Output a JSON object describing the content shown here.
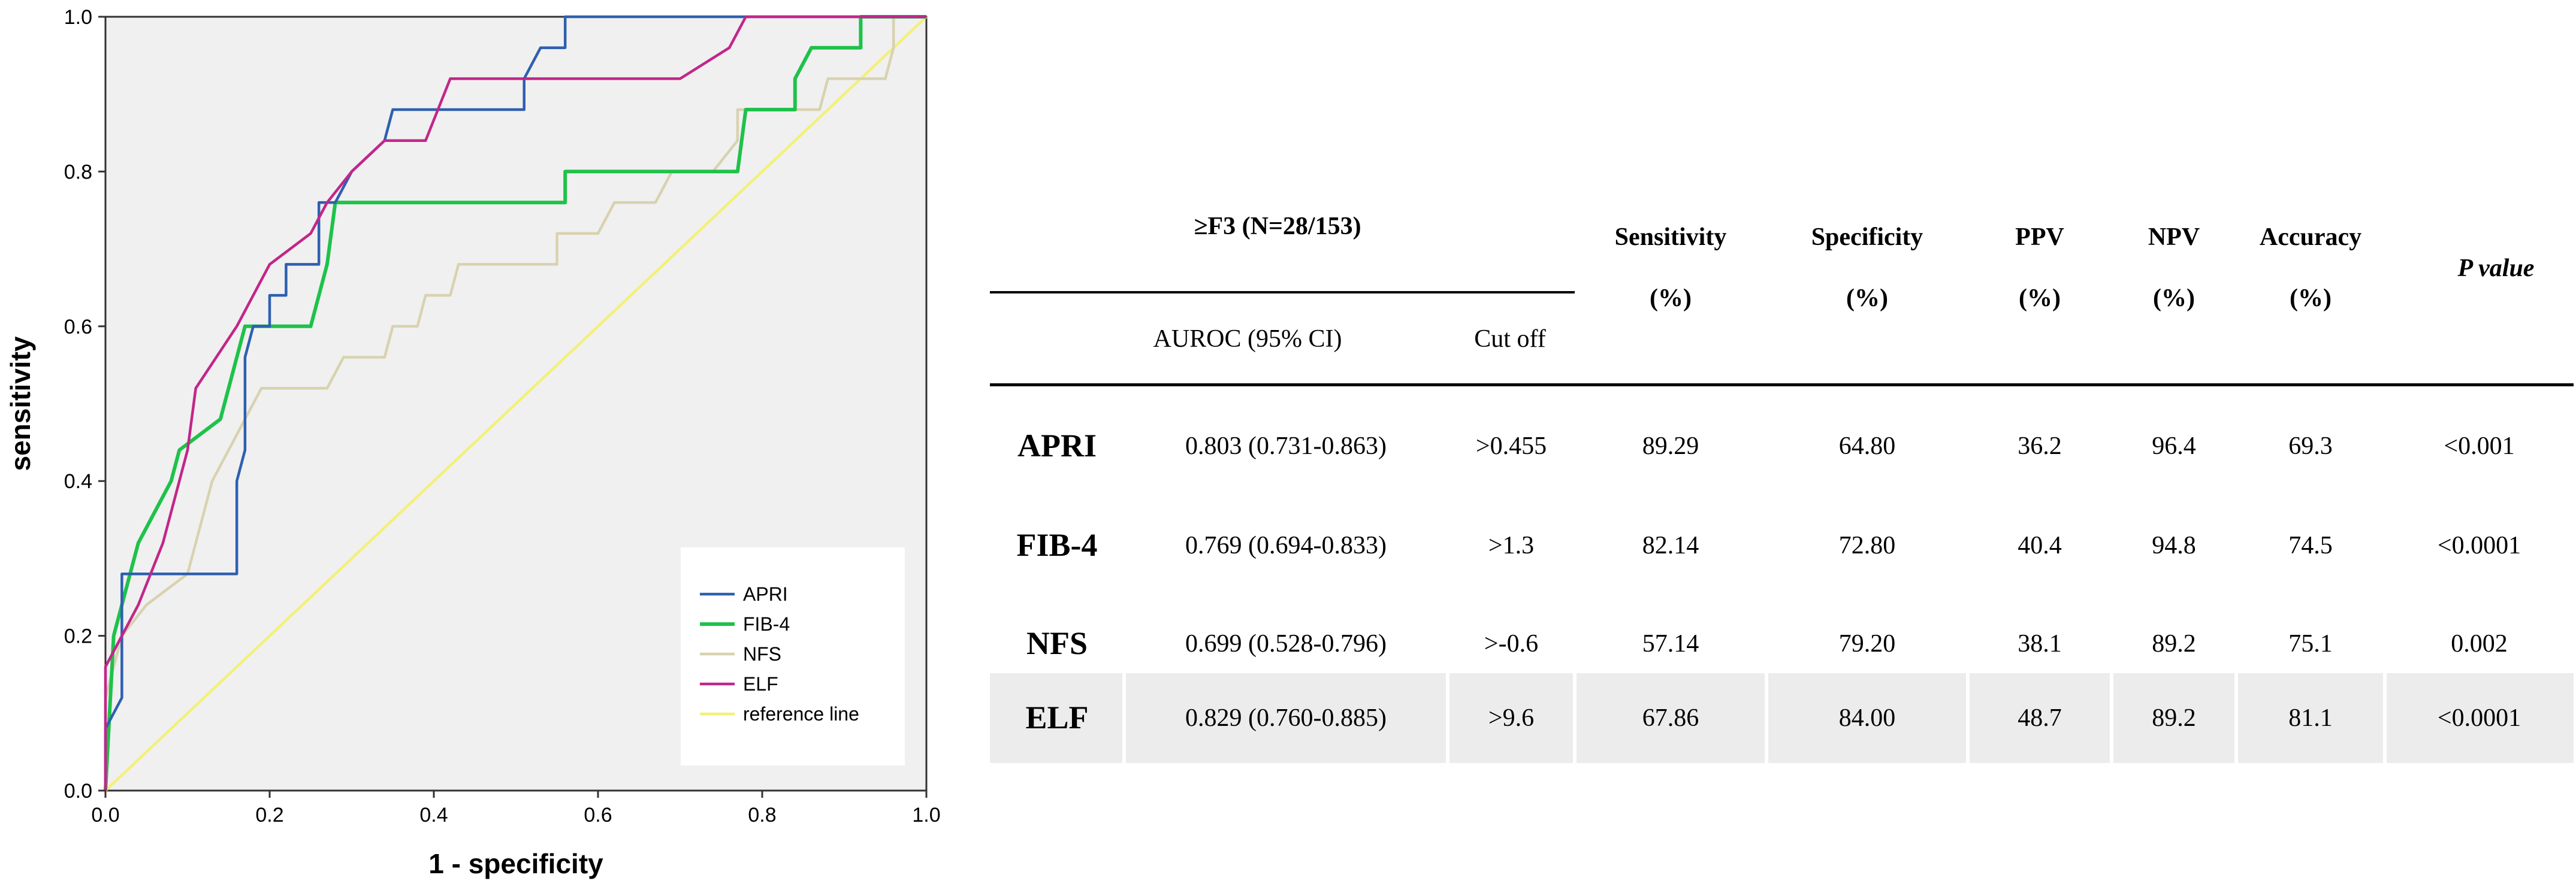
{
  "chart_data": {
    "type": "line",
    "xlabel": "1 - specificity",
    "ylabel": "sensitivity",
    "xlim": [
      0,
      1
    ],
    "ylim": [
      0,
      1
    ],
    "x_ticks": [
      "0.0",
      "0.2",
      "0.4",
      "0.6",
      "0.8",
      "1.0"
    ],
    "y_ticks": [
      "0.0",
      "0.2",
      "0.4",
      "0.6",
      "0.8",
      "1.0"
    ],
    "grid": false,
    "legend_position": "bottom-right",
    "series": [
      {
        "name": "APRI",
        "color": "#2e5fb0",
        "points": [
          [
            0,
            0
          ],
          [
            0,
            0.08
          ],
          [
            0.02,
            0.12
          ],
          [
            0.02,
            0.28
          ],
          [
            0.16,
            0.28
          ],
          [
            0.16,
            0.4
          ],
          [
            0.17,
            0.44
          ],
          [
            0.17,
            0.56
          ],
          [
            0.18,
            0.6
          ],
          [
            0.2,
            0.6
          ],
          [
            0.2,
            0.64
          ],
          [
            0.22,
            0.64
          ],
          [
            0.22,
            0.68
          ],
          [
            0.26,
            0.68
          ],
          [
            0.26,
            0.76
          ],
          [
            0.28,
            0.76
          ],
          [
            0.3,
            0.8
          ],
          [
            0.34,
            0.84
          ],
          [
            0.35,
            0.88
          ],
          [
            0.51,
            0.88
          ],
          [
            0.51,
            0.92
          ],
          [
            0.53,
            0.96
          ],
          [
            0.56,
            0.96
          ],
          [
            0.56,
            1.0
          ],
          [
            1.0,
            1.0
          ]
        ]
      },
      {
        "name": "FIB-4",
        "color": "#1ec24a",
        "points": [
          [
            0,
            0
          ],
          [
            0.01,
            0.2
          ],
          [
            0.02,
            0.24
          ],
          [
            0.03,
            0.28
          ],
          [
            0.04,
            0.32
          ],
          [
            0.06,
            0.36
          ],
          [
            0.08,
            0.4
          ],
          [
            0.09,
            0.44
          ],
          [
            0.14,
            0.48
          ],
          [
            0.15,
            0.52
          ],
          [
            0.16,
            0.56
          ],
          [
            0.17,
            0.6
          ],
          [
            0.2,
            0.6
          ],
          [
            0.25,
            0.6
          ],
          [
            0.26,
            0.64
          ],
          [
            0.27,
            0.68
          ],
          [
            0.28,
            0.76
          ],
          [
            0.56,
            0.76
          ],
          [
            0.56,
            0.8
          ],
          [
            0.77,
            0.8
          ],
          [
            0.78,
            0.88
          ],
          [
            0.84,
            0.88
          ],
          [
            0.84,
            0.92
          ],
          [
            0.86,
            0.96
          ],
          [
            0.92,
            0.96
          ],
          [
            0.92,
            1.0
          ],
          [
            1.0,
            1.0
          ]
        ]
      },
      {
        "name": "NFS",
        "color": "#d8d2b0",
        "points": [
          [
            0,
            0
          ],
          [
            0,
            0.12
          ],
          [
            0.02,
            0.2
          ],
          [
            0.05,
            0.24
          ],
          [
            0.1,
            0.28
          ],
          [
            0.11,
            0.32
          ],
          [
            0.13,
            0.4
          ],
          [
            0.17,
            0.48
          ],
          [
            0.19,
            0.52
          ],
          [
            0.27,
            0.52
          ],
          [
            0.29,
            0.56
          ],
          [
            0.34,
            0.56
          ],
          [
            0.35,
            0.6
          ],
          [
            0.38,
            0.6
          ],
          [
            0.39,
            0.64
          ],
          [
            0.42,
            0.64
          ],
          [
            0.43,
            0.68
          ],
          [
            0.55,
            0.68
          ],
          [
            0.55,
            0.72
          ],
          [
            0.6,
            0.72
          ],
          [
            0.62,
            0.76
          ],
          [
            0.67,
            0.76
          ],
          [
            0.69,
            0.8
          ],
          [
            0.74,
            0.8
          ],
          [
            0.77,
            0.84
          ],
          [
            0.77,
            0.88
          ],
          [
            0.87,
            0.88
          ],
          [
            0.88,
            0.92
          ],
          [
            0.95,
            0.92
          ],
          [
            0.96,
            0.96
          ],
          [
            0.96,
            1.0
          ],
          [
            1.0,
            1.0
          ]
        ]
      },
      {
        "name": "ELF",
        "color": "#c2268a",
        "points": [
          [
            0,
            0
          ],
          [
            0,
            0.16
          ],
          [
            0.02,
            0.2
          ],
          [
            0.04,
            0.24
          ],
          [
            0.07,
            0.32
          ],
          [
            0.08,
            0.36
          ],
          [
            0.09,
            0.4
          ],
          [
            0.1,
            0.44
          ],
          [
            0.11,
            0.52
          ],
          [
            0.16,
            0.6
          ],
          [
            0.2,
            0.68
          ],
          [
            0.25,
            0.72
          ],
          [
            0.27,
            0.76
          ],
          [
            0.3,
            0.8
          ],
          [
            0.34,
            0.84
          ],
          [
            0.39,
            0.84
          ],
          [
            0.42,
            0.92
          ],
          [
            0.7,
            0.92
          ],
          [
            0.76,
            0.96
          ],
          [
            0.78,
            1.0
          ],
          [
            1.0,
            1.0
          ]
        ]
      },
      {
        "name": "reference line",
        "color": "#f4f078",
        "points": [
          [
            0,
            0
          ],
          [
            1,
            1
          ]
        ]
      }
    ]
  },
  "table": {
    "group_header": "≥F3 (N=28/153)",
    "sub_headers": {
      "auroc": "AUROC (95% CI)",
      "cutoff": "Cut off"
    },
    "col_headers": {
      "sensitivity": [
        "Sensitivity",
        "(%)"
      ],
      "specificity": [
        "Specificity",
        "(%)"
      ],
      "ppv": [
        "PPV",
        "(%)"
      ],
      "npv": [
        "NPV",
        "(%)"
      ],
      "accuracy": [
        "Accuracy",
        "(%)"
      ],
      "pvalue": "P value"
    },
    "rows": [
      {
        "name": "APRI",
        "auroc": "0.803 (0.731-0.863)",
        "cutoff": ">0.455",
        "sensitivity": "89.29",
        "specificity": "64.80",
        "ppv": "36.2",
        "npv": "96.4",
        "accuracy": "69.3",
        "pvalue": "<0.001"
      },
      {
        "name": "FIB-4",
        "auroc": "0.769 (0.694-0.833)",
        "cutoff": ">1.3",
        "sensitivity": "82.14",
        "specificity": "72.80",
        "ppv": "40.4",
        "npv": "94.8",
        "accuracy": "74.5",
        "pvalue": "<0.0001"
      },
      {
        "name": "NFS",
        "auroc": "0.699 (0.528-0.796)",
        "cutoff": ">-0.6",
        "sensitivity": "57.14",
        "specificity": "79.20",
        "ppv": "38.1",
        "npv": "89.2",
        "accuracy": "75.1",
        "pvalue": "0.002"
      },
      {
        "name": "ELF",
        "auroc": "0.829 (0.760-0.885)",
        "cutoff": ">9.6",
        "sensitivity": "67.86",
        "specificity": "84.00",
        "ppv": "48.7",
        "npv": "89.2",
        "accuracy": "81.1",
        "pvalue": "<0.0001"
      }
    ]
  }
}
